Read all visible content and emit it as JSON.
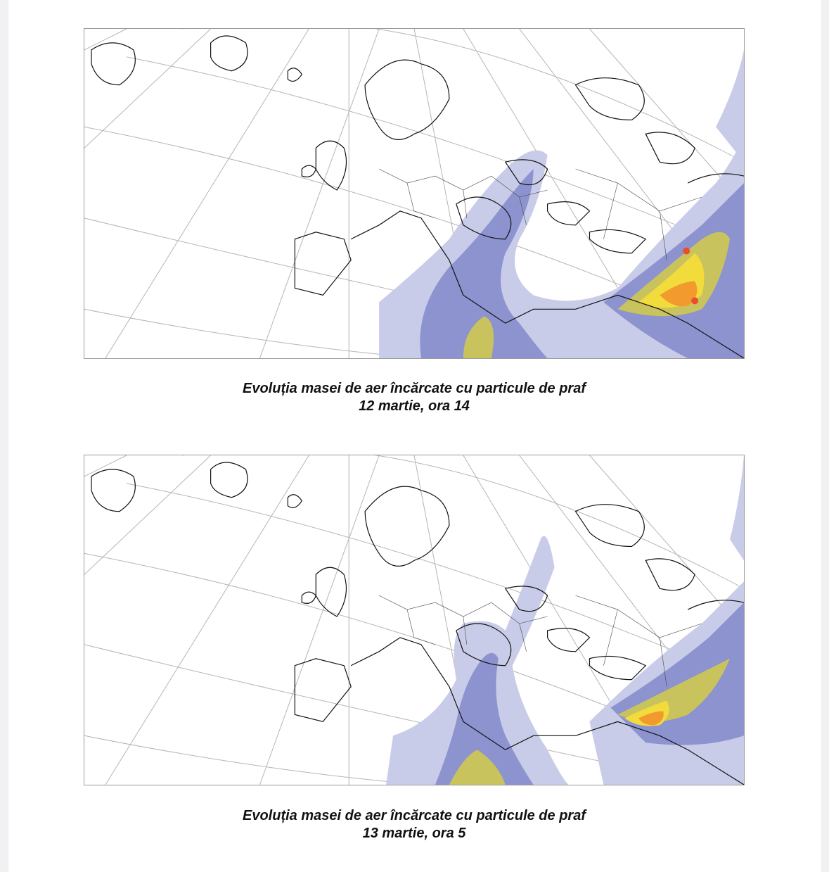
{
  "maps": [
    {
      "caption_title": "Evoluția masei de aer încărcate cu particule de praf",
      "caption_date": "12 martie, ora 14",
      "layer": "dust concentration",
      "colors": {
        "low": "#c8cce8",
        "mid": "#8c93cf",
        "blue": "#6e77c2",
        "olive": "#c9c35e",
        "yellow": "#f2dc3c",
        "orange": "#f29a2e",
        "red": "#e8502a"
      }
    },
    {
      "caption_title": "Evoluția masei de aer încărcate cu particule de praf",
      "caption_date": "13 martie, ora 5",
      "layer": "dust concentration",
      "colors": {
        "low": "#c8cce8",
        "mid": "#8c93cf",
        "blue": "#6e77c2",
        "olive": "#c9c35e",
        "yellow": "#f2dc3c",
        "orange": "#f29a2e",
        "red": "#e8502a"
      }
    }
  ]
}
